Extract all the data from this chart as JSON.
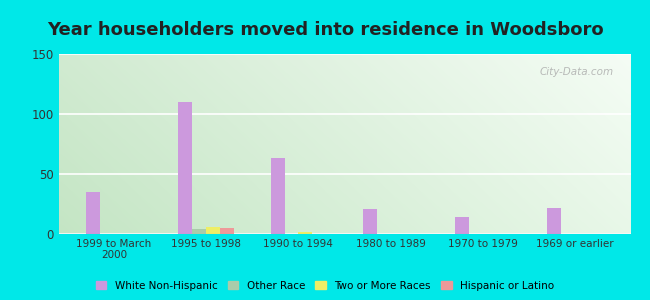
{
  "title": "Year householders moved into residence in Woodsboro",
  "categories": [
    "1999 to March\n2000",
    "1995 to 1998",
    "1990 to 1994",
    "1980 to 1989",
    "1970 to 1979",
    "1969 or earlier"
  ],
  "series": {
    "White Non-Hispanic": [
      35,
      110,
      63,
      21,
      14,
      22
    ],
    "Other Race": [
      0,
      4,
      0,
      0,
      0,
      0
    ],
    "Two or More Races": [
      0,
      6,
      2,
      0,
      0,
      0
    ],
    "Hispanic or Latino": [
      0,
      5,
      0,
      0,
      0,
      0
    ]
  },
  "colors": {
    "White Non-Hispanic": "#cc99dd",
    "Other Race": "#aaccaa",
    "Two or More Races": "#eeee66",
    "Hispanic or Latino": "#ee9999"
  },
  "ylim": [
    0,
    150
  ],
  "yticks": [
    0,
    50,
    100,
    150
  ],
  "outer_background": "#00e8e8",
  "title_fontsize": 13,
  "bar_width": 0.15,
  "watermark": "City-Data.com"
}
